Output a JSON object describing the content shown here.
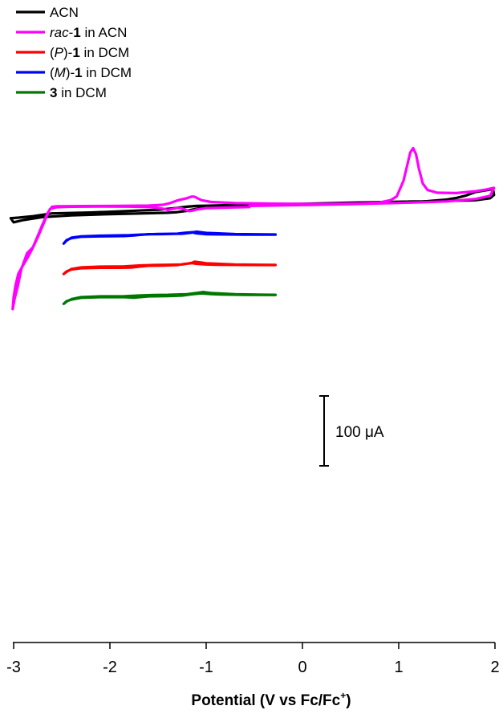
{
  "chart_data": {
    "type": "line",
    "xlabel_main": "Potential (V vs Fc/Fc",
    "xlabel_sup": "+",
    "xlabel_end": ")",
    "ylabel": "",
    "xlim": [
      -3.05,
      2.0
    ],
    "ticks": [
      {
        "value": -3,
        "label": "-3"
      },
      {
        "value": -2,
        "label": "-2"
      },
      {
        "value": -1,
        "label": "-1"
      },
      {
        "value": 0,
        "label": "0"
      },
      {
        "value": 1,
        "label": "1"
      },
      {
        "value": 2,
        "label": "2"
      }
    ],
    "legend": {
      "placement": "top-left",
      "entries": [
        {
          "key": "acn",
          "color": "#000000",
          "pre": "",
          "ital": "",
          "mid": "",
          "bold": "",
          "post": "ACN"
        },
        {
          "key": "rac",
          "color": "#ff00ff",
          "pre": "",
          "ital": "rac",
          "mid": "-",
          "bold": "1",
          "post": " in ACN"
        },
        {
          "key": "P",
          "color": "#ff0000",
          "pre": "(",
          "ital": "P",
          "mid": ")-",
          "bold": "1",
          "post": " in DCM"
        },
        {
          "key": "M",
          "color": "#0000ff",
          "pre": "(",
          "ital": "M",
          "mid": ")-",
          "bold": "1",
          "post": " in DCM"
        },
        {
          "key": "c3",
          "color": "#007700",
          "pre": "",
          "ital": "",
          "mid": "",
          "bold": "3",
          "post": " in DCM"
        }
      ]
    },
    "scale_bar": {
      "value": "100",
      "unit": "μA"
    },
    "series": [
      {
        "key": "acn",
        "color": "#000000",
        "points": [
          [
            -3.03,
            -8.3
          ],
          [
            -2.95,
            -9.0
          ],
          [
            -2.8,
            -10.8
          ],
          [
            -2.6,
            -14.3
          ],
          [
            -2.2,
            -15.4
          ],
          [
            -1.8,
            -17.3
          ],
          [
            -1.5,
            -18.8
          ],
          [
            -1.35,
            -20.5
          ],
          [
            -1.2,
            -22.6
          ],
          [
            -1.1,
            -23.6
          ],
          [
            -0.8,
            -24.4
          ],
          [
            -0.4,
            -25.0
          ],
          [
            0.0,
            -25.5
          ],
          [
            0.4,
            -26.1
          ],
          [
            0.7,
            -26.8
          ],
          [
            0.9,
            -27.4
          ],
          [
            1.1,
            -28.3
          ],
          [
            1.3,
            -29.5
          ],
          [
            1.5,
            -31.5
          ],
          [
            1.6,
            -33.6
          ],
          [
            1.7,
            -36.6
          ],
          [
            1.8,
            -41.0
          ],
          [
            1.9,
            -43.0
          ],
          [
            1.98,
            -44.6
          ],
          [
            1.99,
            -37.3
          ],
          [
            1.95,
            -33.2
          ],
          [
            1.8,
            -30.7
          ],
          [
            1.5,
            -29.8
          ],
          [
            1.0,
            -28.8
          ],
          [
            0.5,
            -27.7
          ],
          [
            0.0,
            -26.2
          ],
          [
            -0.6,
            -24.9
          ],
          [
            -0.95,
            -23.0
          ],
          [
            -1.1,
            -20.0
          ],
          [
            -1.2,
            -17.5
          ],
          [
            -1.3,
            -15.9
          ],
          [
            -1.4,
            -15.1
          ],
          [
            -1.6,
            -14.5
          ],
          [
            -2.0,
            -13.4
          ],
          [
            -2.4,
            -11.8
          ],
          [
            -2.7,
            -9.7
          ],
          [
            -2.9,
            -6.0
          ],
          [
            -3.0,
            -3.2
          ],
          [
            -3.03,
            -8.3
          ]
        ]
      },
      {
        "key": "rac",
        "color": "#ff00ff",
        "points": [
          [
            -0.55,
            -22.2
          ],
          [
            -0.8,
            -21.5
          ],
          [
            -1.0,
            -20.9
          ],
          [
            -1.1,
            -19.1
          ],
          [
            -1.15,
            -17.6
          ],
          [
            -1.18,
            -17.1
          ],
          [
            -1.25,
            -20.4
          ],
          [
            -1.3,
            -21.2
          ],
          [
            -1.36,
            -19.5
          ],
          [
            -1.4,
            -18.5
          ],
          [
            -1.43,
            -19.7
          ],
          [
            -1.5,
            -21.2
          ],
          [
            -1.6,
            -22.2
          ],
          [
            -1.8,
            -22.7
          ],
          [
            -2.1,
            -22.8
          ],
          [
            -2.4,
            -22.6
          ],
          [
            -2.55,
            -22.0
          ],
          [
            -2.62,
            -20.0
          ],
          [
            -2.65,
            -14.0
          ],
          [
            -2.7,
            -0.5
          ],
          [
            -2.75,
            14.0
          ],
          [
            -2.8,
            28.0
          ],
          [
            -2.86,
            35.2
          ],
          [
            -2.92,
            55.0
          ],
          [
            -2.96,
            78.0
          ],
          [
            -2.99,
            92.0
          ],
          [
            -3.01,
            104.9
          ],
          [
            -3.0,
            90.0
          ],
          [
            -2.98,
            75.0
          ],
          [
            -2.95,
            60.5
          ],
          [
            -2.9,
            49.8
          ],
          [
            -2.85,
            39.8
          ],
          [
            -2.8,
            28.3
          ],
          [
            -2.75,
            15.5
          ],
          [
            -2.7,
            1.5
          ],
          [
            -2.66,
            -10.0
          ],
          [
            -2.63,
            -18.0
          ],
          [
            -2.6,
            -22.5
          ],
          [
            -2.55,
            -23.1
          ],
          [
            -2.3,
            -23.4
          ],
          [
            -1.9,
            -23.7
          ],
          [
            -1.6,
            -24.0
          ],
          [
            -1.45,
            -25.0
          ],
          [
            -1.38,
            -26.9
          ],
          [
            -1.3,
            -30.4
          ],
          [
            -1.25,
            -31.8
          ],
          [
            -1.2,
            -33.2
          ],
          [
            -1.15,
            -35.3
          ],
          [
            -1.12,
            -35.0
          ],
          [
            -1.05,
            -30.8
          ],
          [
            -0.95,
            -28.5
          ],
          [
            -0.7,
            -27.1
          ],
          [
            -0.3,
            -26.4
          ],
          [
            0.2,
            -26.0
          ],
          [
            0.6,
            -26.6
          ],
          [
            0.8,
            -27.8
          ],
          [
            0.92,
            -31.0
          ],
          [
            0.98,
            -35.5
          ],
          [
            1.05,
            -55.0
          ],
          [
            1.09,
            -75.0
          ],
          [
            1.12,
            -90.0
          ],
          [
            1.15,
            -95.6
          ],
          [
            1.18,
            -88.0
          ],
          [
            1.21,
            -70.0
          ],
          [
            1.25,
            -51.5
          ],
          [
            1.3,
            -43.4
          ],
          [
            1.4,
            -40.0
          ],
          [
            1.6,
            -39.6
          ],
          [
            1.8,
            -41.9
          ],
          [
            1.9,
            -43.8
          ],
          [
            1.99,
            -46.0
          ],
          [
            1.95,
            -36.2
          ],
          [
            1.8,
            -32.3
          ],
          [
            1.5,
            -29.2
          ],
          [
            1.0,
            -27.3
          ],
          [
            0.5,
            -25.8
          ],
          [
            0.0,
            -24.7
          ],
          [
            -0.55,
            -23.6
          ]
        ]
      },
      {
        "key": "M",
        "color": "#0000ff",
        "points": [
          [
            -0.28,
            12.2
          ],
          [
            -0.6,
            12.1
          ],
          [
            -0.9,
            11.8
          ],
          [
            -1.0,
            11.6
          ],
          [
            -1.1,
            10.5
          ],
          [
            -1.15,
            9.2
          ],
          [
            -1.22,
            9.9
          ],
          [
            -1.3,
            11.0
          ],
          [
            -1.45,
            11.5
          ],
          [
            -1.6,
            11.6
          ],
          [
            -1.7,
            12.5
          ],
          [
            -1.75,
            13.2
          ],
          [
            -1.85,
            13.9
          ],
          [
            -2.1,
            14.3
          ],
          [
            -2.3,
            14.8
          ],
          [
            -2.4,
            16.5
          ],
          [
            -2.45,
            19.0
          ],
          [
            -2.48,
            23.3
          ],
          [
            -2.45,
            19.5
          ],
          [
            -2.4,
            16.0
          ],
          [
            -2.3,
            14.3
          ],
          [
            -2.1,
            13.5
          ],
          [
            -1.8,
            12.9
          ],
          [
            -1.65,
            12.0
          ],
          [
            -1.5,
            11.3
          ],
          [
            -1.35,
            11.1
          ],
          [
            -1.25,
            11.0
          ],
          [
            -1.15,
            9.6
          ],
          [
            -1.1,
            8.5
          ],
          [
            -1.0,
            10.0
          ],
          [
            -0.7,
            11.5
          ],
          [
            -0.4,
            11.9
          ],
          [
            -0.28,
            12.0
          ]
        ]
      },
      {
        "key": "P",
        "color": "#ff0000",
        "points": [
          [
            -0.28,
            50.0
          ],
          [
            -0.6,
            49.9
          ],
          [
            -0.9,
            49.6
          ],
          [
            -1.0,
            49.3
          ],
          [
            -1.1,
            48.5
          ],
          [
            -1.15,
            47.6
          ],
          [
            -1.24,
            48.9
          ],
          [
            -1.3,
            50.0
          ],
          [
            -1.45,
            50.7
          ],
          [
            -1.6,
            50.9
          ],
          [
            -1.7,
            52.0
          ],
          [
            -1.78,
            53.1
          ],
          [
            -1.9,
            53.4
          ],
          [
            -2.1,
            53.4
          ],
          [
            -2.3,
            54.0
          ],
          [
            -2.4,
            55.5
          ],
          [
            -2.45,
            58.0
          ],
          [
            -2.48,
            61.2
          ],
          [
            -2.45,
            58.5
          ],
          [
            -2.4,
            55.0
          ],
          [
            -2.3,
            53.0
          ],
          [
            -2.1,
            52.0
          ],
          [
            -1.85,
            51.7
          ],
          [
            -1.7,
            50.6
          ],
          [
            -1.55,
            50.0
          ],
          [
            -1.4,
            49.7
          ],
          [
            -1.25,
            49.3
          ],
          [
            -1.15,
            47.3
          ],
          [
            -1.12,
            45.8
          ],
          [
            -1.0,
            47.8
          ],
          [
            -0.7,
            49.4
          ],
          [
            -0.4,
            49.7
          ],
          [
            -0.28,
            49.8
          ]
        ]
      },
      {
        "key": "c3",
        "color": "#007700",
        "points": [
          [
            -0.28,
            87.3
          ],
          [
            -0.6,
            87.1
          ],
          [
            -0.85,
            86.6
          ],
          [
            -0.95,
            86.1
          ],
          [
            -1.05,
            85.3
          ],
          [
            -1.15,
            86.4
          ],
          [
            -1.25,
            88.0
          ],
          [
            -1.4,
            88.6
          ],
          [
            -1.6,
            89.0
          ],
          [
            -1.75,
            90.6
          ],
          [
            -1.85,
            90.0
          ],
          [
            -2.1,
            90.0
          ],
          [
            -2.3,
            90.8
          ],
          [
            -2.4,
            93.0
          ],
          [
            -2.45,
            95.0
          ],
          [
            -2.48,
            98.3
          ],
          [
            -2.45,
            95.5
          ],
          [
            -2.4,
            92.5
          ],
          [
            -2.3,
            90.0
          ],
          [
            -2.1,
            89.0
          ],
          [
            -1.85,
            88.8
          ],
          [
            -1.7,
            88.0
          ],
          [
            -1.55,
            87.3
          ],
          [
            -1.4,
            87.1
          ],
          [
            -1.2,
            86.3
          ],
          [
            -1.08,
            84.5
          ],
          [
            -1.03,
            83.6
          ],
          [
            -0.95,
            84.8
          ],
          [
            -0.7,
            86.4
          ],
          [
            -0.4,
            87.0
          ],
          [
            -0.28,
            87.1
          ]
        ]
      }
    ]
  }
}
